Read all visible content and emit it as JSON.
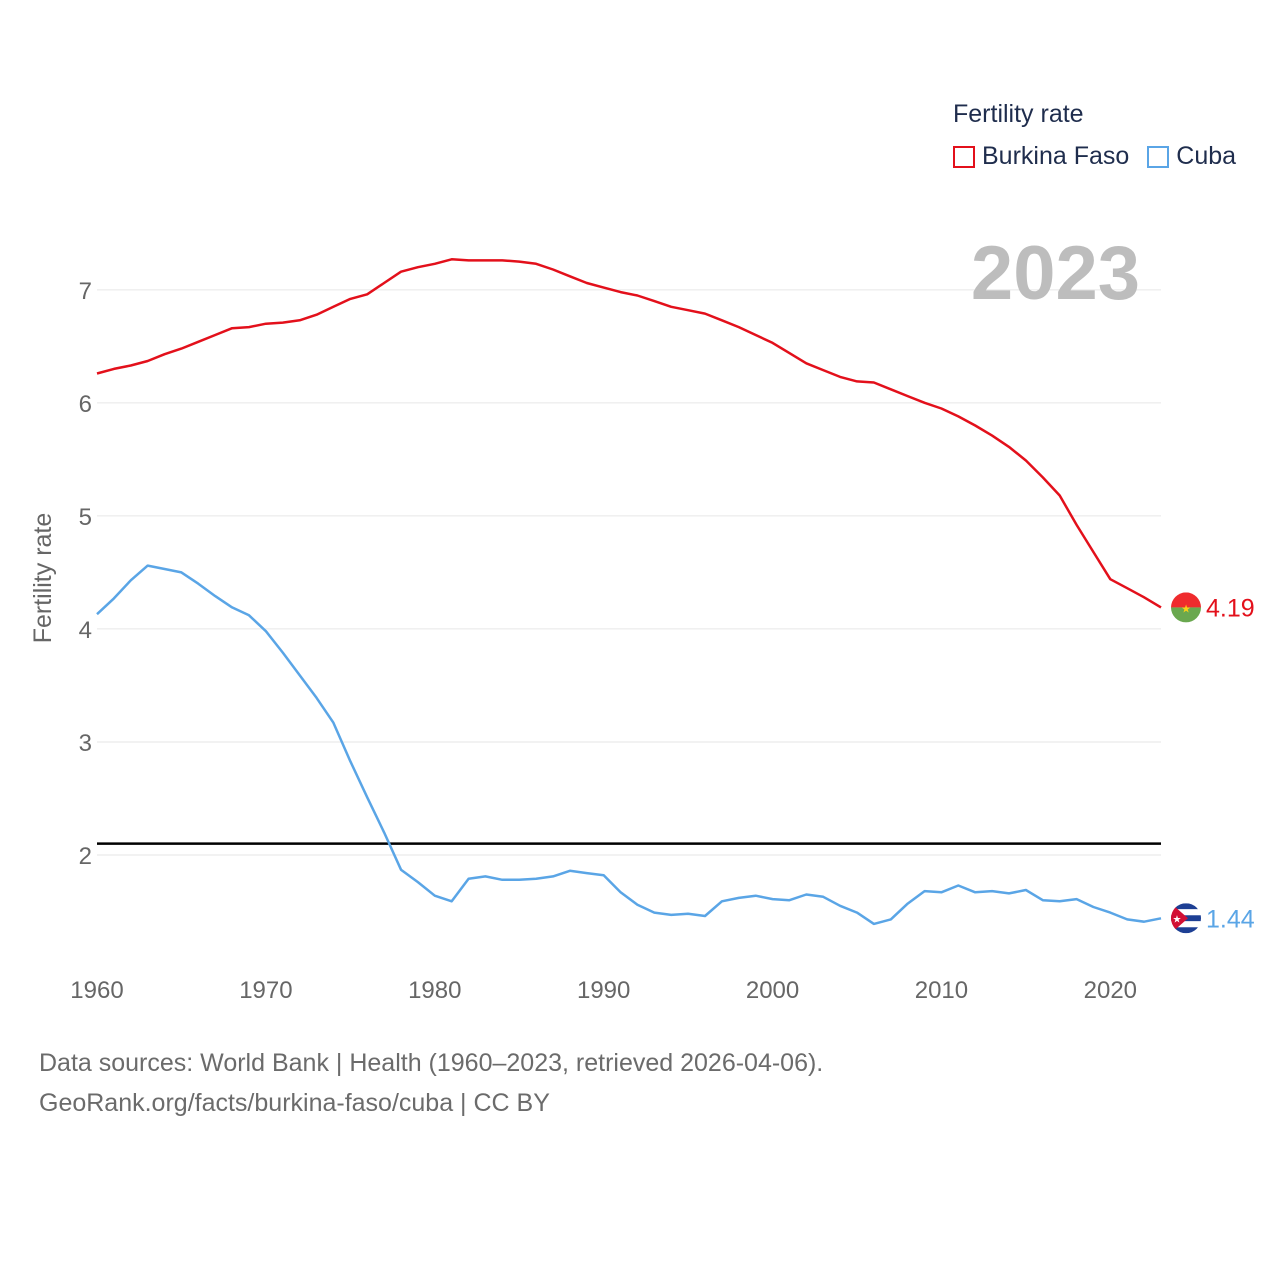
{
  "chart_data": {
    "type": "line",
    "ylabel": "Fertility rate",
    "xlim": [
      1960,
      2023
    ],
    "ylim": [
      1.0,
      7.6
    ],
    "yticks": [
      2,
      3,
      4,
      5,
      6,
      7
    ],
    "xticks": [
      1960,
      1970,
      1980,
      1990,
      2000,
      2010,
      2020
    ],
    "year_label": "2023",
    "reference_line": 2.1,
    "legend": {
      "title": "Fertility rate",
      "position": "top-right"
    },
    "series": [
      {
        "name": "Burkina Faso",
        "color": "#e3101b",
        "end_label": "4.19",
        "x": [
          1960,
          1961,
          1962,
          1963,
          1964,
          1965,
          1966,
          1967,
          1968,
          1969,
          1970,
          1971,
          1972,
          1973,
          1974,
          1975,
          1976,
          1977,
          1978,
          1979,
          1980,
          1981,
          1982,
          1983,
          1984,
          1985,
          1986,
          1987,
          1988,
          1989,
          1990,
          1991,
          1992,
          1993,
          1994,
          1995,
          1996,
          1997,
          1998,
          1999,
          2000,
          2001,
          2002,
          2003,
          2004,
          2005,
          2006,
          2007,
          2008,
          2009,
          2010,
          2011,
          2012,
          2013,
          2014,
          2015,
          2016,
          2017,
          2018,
          2019,
          2020,
          2021,
          2022,
          2023
        ],
        "y": [
          6.26,
          6.3,
          6.33,
          6.37,
          6.43,
          6.48,
          6.54,
          6.6,
          6.66,
          6.67,
          6.7,
          6.71,
          6.73,
          6.78,
          6.85,
          6.92,
          6.96,
          7.06,
          7.16,
          7.2,
          7.23,
          7.27,
          7.26,
          7.26,
          7.26,
          7.25,
          7.23,
          7.18,
          7.12,
          7.06,
          7.02,
          6.98,
          6.95,
          6.9,
          6.85,
          6.82,
          6.79,
          6.73,
          6.67,
          6.6,
          6.53,
          6.44,
          6.35,
          6.29,
          6.23,
          6.19,
          6.18,
          6.12,
          6.06,
          6.0,
          5.95,
          5.88,
          5.8,
          5.71,
          5.61,
          5.49,
          5.34,
          5.18,
          4.92,
          4.68,
          4.44,
          4.36,
          4.28,
          4.19
        ]
      },
      {
        "name": "Cuba",
        "color": "#5aa5e6",
        "end_label": "1.44",
        "x": [
          1960,
          1961,
          1962,
          1963,
          1964,
          1965,
          1966,
          1967,
          1968,
          1969,
          1970,
          1971,
          1972,
          1973,
          1974,
          1975,
          1976,
          1977,
          1978,
          1979,
          1980,
          1981,
          1982,
          1983,
          1984,
          1985,
          1986,
          1987,
          1988,
          1989,
          1990,
          1991,
          1992,
          1993,
          1994,
          1995,
          1996,
          1997,
          1998,
          1999,
          2000,
          2001,
          2002,
          2003,
          2004,
          2005,
          2006,
          2007,
          2008,
          2009,
          2010,
          2011,
          2012,
          2013,
          2014,
          2015,
          2016,
          2017,
          2018,
          2019,
          2020,
          2021,
          2022,
          2023
        ],
        "y": [
          4.13,
          4.27,
          4.43,
          4.56,
          4.53,
          4.5,
          4.4,
          4.29,
          4.19,
          4.12,
          3.98,
          3.79,
          3.59,
          3.39,
          3.17,
          2.83,
          2.51,
          2.2,
          1.87,
          1.76,
          1.64,
          1.59,
          1.79,
          1.81,
          1.78,
          1.78,
          1.79,
          1.81,
          1.86,
          1.84,
          1.82,
          1.67,
          1.56,
          1.49,
          1.47,
          1.48,
          1.46,
          1.59,
          1.62,
          1.64,
          1.61,
          1.6,
          1.65,
          1.63,
          1.55,
          1.49,
          1.39,
          1.43,
          1.57,
          1.68,
          1.67,
          1.73,
          1.67,
          1.68,
          1.66,
          1.69,
          1.6,
          1.59,
          1.61,
          1.54,
          1.49,
          1.43,
          1.41,
          1.44
        ]
      }
    ]
  },
  "footer": {
    "line1": "Data sources: World Bank | Health (1960–2023, retrieved 2026-04-06).",
    "line2": "GeoRank.org/facts/burkina-faso/cuba | CC BY"
  }
}
